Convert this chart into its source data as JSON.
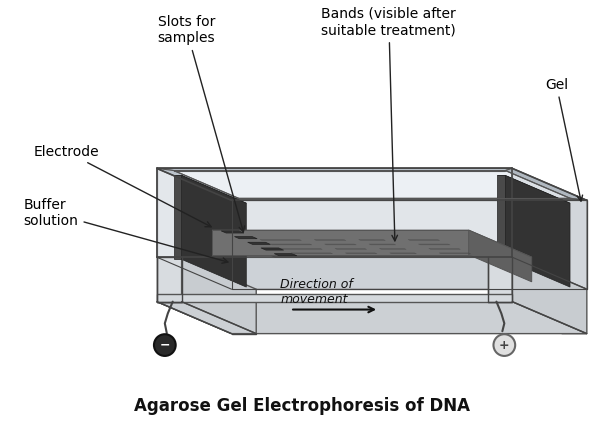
{
  "title": "Agarose Gel Electrophoresis of DNA",
  "title_fontsize": 12,
  "title_fontweight": "bold",
  "bg_color": "#ffffff",
  "labels": {
    "slots": "Slots for\nsamples",
    "bands": "Bands (visible after\nsuitable treatment)",
    "gel": "Gel",
    "electrode": "Electrode",
    "buffer": "Buffer\nsolution",
    "direction": "Direction of\nmovement"
  },
  "label_fontsize": 10
}
